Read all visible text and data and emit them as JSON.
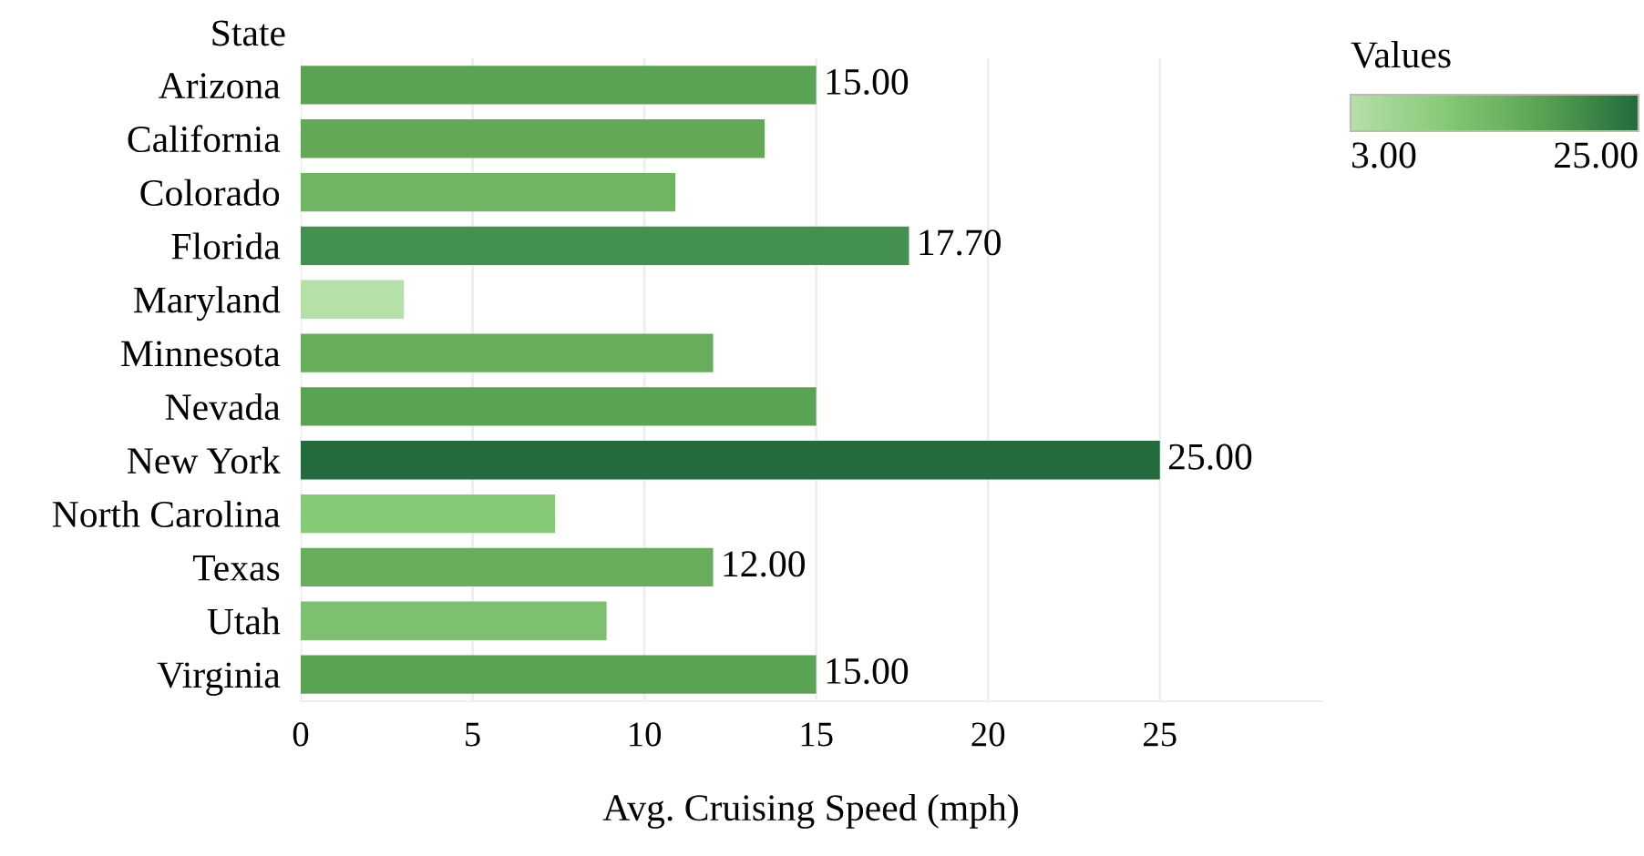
{
  "chart_data": {
    "type": "bar",
    "orientation": "horizontal",
    "ylabel": "State",
    "xlabel": "Avg. Cruising Speed (mph)",
    "legend_title": "Values",
    "categories": [
      "Arizona",
      "California",
      "Colorado",
      "Florida",
      "Maryland",
      "Minnesota",
      "Nevada",
      "New York",
      "North Carolina",
      "Texas",
      "Utah",
      "Virginia"
    ],
    "values": [
      15,
      13.5,
      10.9,
      17.7,
      3,
      12,
      15,
      25,
      7.4,
      12,
      8.9,
      15
    ],
    "colors": [
      "#5aa354",
      "#62a857",
      "#70b564",
      "#43904f",
      "#b5e0a8",
      "#68ad5b",
      "#5aa354",
      "#236b3c",
      "#86c977",
      "#68ad5b",
      "#7dc06f",
      "#5aa354"
    ],
    "value_labels": [
      "15.00",
      null,
      null,
      "17.70",
      null,
      null,
      null,
      "25.00",
      null,
      "12.00",
      null,
      "15.00"
    ],
    "xlim": [
      0,
      29.7
    ],
    "xticks": [
      0,
      5,
      10,
      15,
      20,
      25
    ],
    "grid": "x",
    "clim": [
      3,
      25
    ],
    "cticks": [
      {
        "value": 3,
        "label": "3.00"
      },
      {
        "value": 25,
        "label": "25.00"
      }
    ]
  }
}
